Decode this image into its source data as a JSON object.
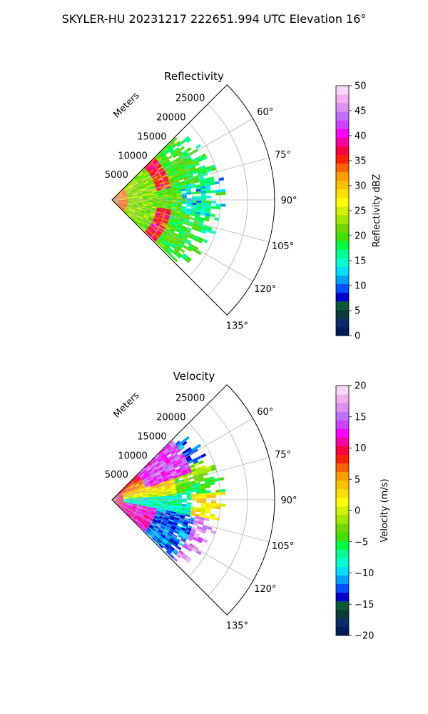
{
  "figure": {
    "suptitle": "SKYLER-HU  20231217  222651.994 UTC Elevation 16°"
  },
  "chart_data": [
    {
      "type": "polar-sector",
      "title": "Reflectivity",
      "range_unit_label": "Meters",
      "range_ticks": [
        5000,
        10000,
        15000,
        20000,
        25000
      ],
      "range_tick_labels": [
        "5000",
        "10000",
        "15000",
        "20000",
        "25000"
      ],
      "range_max": 30000,
      "azimuth_ticks": [
        60,
        75,
        90,
        105,
        120,
        135
      ],
      "azimuth_tick_labels": [
        "60°",
        "75°",
        "90°",
        "105°",
        "120°",
        "135°"
      ],
      "azimuth_range": [
        45,
        135
      ],
      "grid": true,
      "field": "reflectivity",
      "colorbar": {
        "label": "Reflectivity dBZ",
        "min": 0,
        "max": 50,
        "ticks": [
          0,
          5,
          10,
          15,
          20,
          25,
          30,
          35,
          40,
          45,
          50
        ],
        "tick_labels": [
          "0",
          "5",
          "10",
          "15",
          "20",
          "25",
          "30",
          "35",
          "40",
          "45",
          "50"
        ],
        "colors": [
          "#001a5a",
          "#0a2a6a",
          "#0b3a3a",
          "#0a5a3a",
          "#0000cd",
          "#0050ff",
          "#00a0ff",
          "#00e0ff",
          "#00ffd0",
          "#00ff90",
          "#00ff40",
          "#40e000",
          "#70d800",
          "#a0e800",
          "#d0f000",
          "#ffff00",
          "#ffe000",
          "#ffc000",
          "#ffa000",
          "#ff6000",
          "#ff2000",
          "#ff0040",
          "#ff00a0",
          "#ff00ff",
          "#d040ff",
          "#c070ff",
          "#e090f0",
          "#f0b0f0",
          "#f8d8f8"
        ]
      }
    },
    {
      "type": "polar-sector",
      "title": "Velocity",
      "range_unit_label": "Meters",
      "range_ticks": [
        5000,
        10000,
        15000,
        20000,
        25000
      ],
      "range_tick_labels": [
        "5000",
        "10000",
        "15000",
        "20000",
        "25000"
      ],
      "range_max": 30000,
      "azimuth_ticks": [
        60,
        75,
        90,
        105,
        120,
        135
      ],
      "azimuth_tick_labels": [
        "60°",
        "75°",
        "90°",
        "105°",
        "120°",
        "135°"
      ],
      "azimuth_range": [
        45,
        135
      ],
      "grid": true,
      "field": "velocity",
      "colorbar": {
        "label": "Velocity (m/s)",
        "min": -20,
        "max": 20,
        "ticks": [
          -20,
          -15,
          -10,
          -5,
          0,
          5,
          10,
          15,
          20
        ],
        "tick_labels": [
          "−20",
          "−15",
          "−10",
          "−5",
          "0",
          "5",
          "10",
          "15",
          "20"
        ],
        "colors": [
          "#001a5a",
          "#0a2a6a",
          "#0b3a3a",
          "#0a5a3a",
          "#0000cd",
          "#0050ff",
          "#00a0ff",
          "#00e0ff",
          "#00ffd0",
          "#00ff90",
          "#00ff40",
          "#40e000",
          "#70d800",
          "#a0e800",
          "#d0f000",
          "#ffff00",
          "#ffe000",
          "#ffc000",
          "#ffa000",
          "#ff6000",
          "#ff2000",
          "#ff0040",
          "#ff00a0",
          "#ff00ff",
          "#d040ff",
          "#c070ff",
          "#e090f0",
          "#f0b0f0",
          "#f8d8f8"
        ]
      }
    }
  ]
}
